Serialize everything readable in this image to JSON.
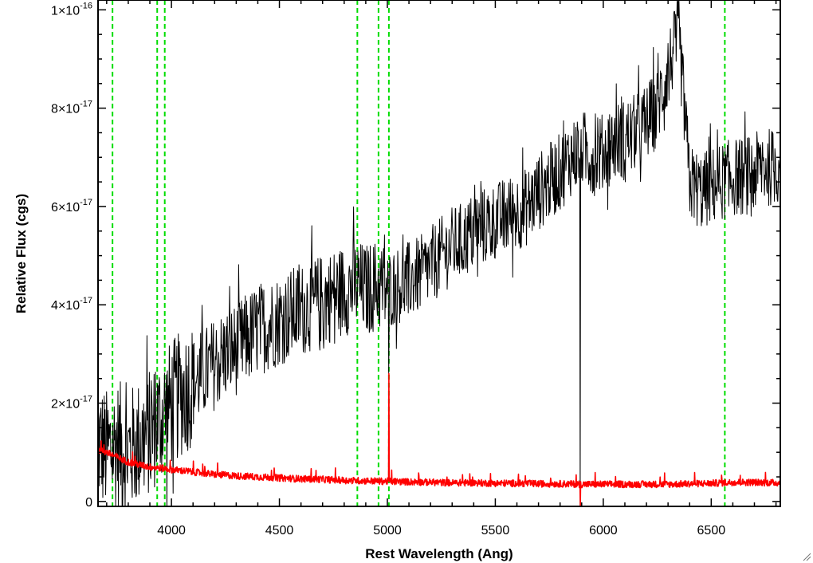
{
  "chart_data": {
    "type": "line",
    "title": "",
    "xlabel": "Rest Wavelength (Ang)",
    "ylabel": "Relative Flux (cgs)",
    "xlim": [
      3660,
      6820
    ],
    "ylim": [
      -1e-18,
      1.02e-16
    ],
    "x_ticks": [
      {
        "value": 4000,
        "label": "4000"
      },
      {
        "value": 4500,
        "label": "4500"
      },
      {
        "value": 5000,
        "label": "5000"
      },
      {
        "value": 5500,
        "label": "5500"
      },
      {
        "value": 6000,
        "label": "6000"
      },
      {
        "value": 6500,
        "label": "6500"
      }
    ],
    "y_ticks": [
      {
        "value": 0,
        "mant": "0",
        "exp": ""
      },
      {
        "value": 2e-17,
        "mant": "2×10",
        "exp": "-17"
      },
      {
        "value": 4e-17,
        "mant": "4×10",
        "exp": "-17"
      },
      {
        "value": 6e-17,
        "mant": "6×10",
        "exp": "-17"
      },
      {
        "value": 8e-17,
        "mant": "8×10",
        "exp": "-17"
      },
      {
        "value": 1e-16,
        "mant": "1×10",
        "exp": "-16"
      }
    ],
    "grid": false,
    "legend": "none",
    "vertical_lines": {
      "color": "#00dd00",
      "style": "dashed",
      "x": [
        3727,
        3934,
        3969,
        4861,
        4959,
        5007,
        6563
      ]
    },
    "series": [
      {
        "color": "#000000",
        "x": [
          3660,
          3700,
          3750,
          3800,
          3850,
          3900,
          3950,
          4000,
          4050,
          4100,
          4150,
          4200,
          4250,
          4300,
          4350,
          4400,
          4450,
          4500,
          4550,
          4600,
          4650,
          4700,
          4750,
          4800,
          4850,
          4900,
          4950,
          5000,
          5050,
          5100,
          5150,
          5200,
          5250,
          5300,
          5350,
          5400,
          5450,
          5500,
          5550,
          5600,
          5650,
          5700,
          5750,
          5800,
          5850,
          5900,
          5950,
          6000,
          6050,
          6100,
          6150,
          6200,
          6250,
          6300,
          6350,
          6400,
          6450,
          6500,
          6550,
          6600,
          6650,
          6700,
          6750,
          6800
        ],
        "y": [
          1.2e-17,
          1e-17,
          1.2e-17,
          1e-17,
          1.2e-17,
          1.4e-17,
          1.7e-17,
          2e-17,
          2.2e-17,
          2.4e-17,
          2.6e-17,
          2.8e-17,
          3e-17,
          3.1e-17,
          3.3e-17,
          3.5e-17,
          3.6e-17,
          3.7e-17,
          3.8e-17,
          3.9e-17,
          4e-17,
          4.1e-17,
          4.2e-17,
          4.3e-17,
          4.4e-17,
          4.3e-17,
          4.4e-17,
          4.3e-17,
          4.4e-17,
          4.5e-17,
          4.6e-17,
          4.8e-17,
          5e-17,
          5.2e-17,
          5.3e-17,
          5.5e-17,
          5.6e-17,
          5.7e-17,
          5.8e-17,
          5.9e-17,
          6e-17,
          6.3e-17,
          6.5e-17,
          6.7e-17,
          7e-17,
          7.2e-17,
          7e-17,
          7.1e-17,
          7.3e-17,
          7.4e-17,
          7.5e-17,
          7.7e-17,
          8e-17,
          8.8e-17,
          9.5e-17,
          6.5e-17,
          6.3e-17,
          6.4e-17,
          6.5e-17,
          6.6e-17,
          6.6e-17,
          6.7e-17,
          6.8e-17,
          6.8e-17
        ]
      },
      {
        "color": "#ff0000",
        "x": [
          3660,
          3700,
          3750,
          3800,
          3850,
          3900,
          3950,
          4000,
          4100,
          4200,
          4300,
          4400,
          4500,
          4600,
          4700,
          4800,
          4900,
          5000,
          5100,
          5200,
          5300,
          5400,
          5500,
          5600,
          5700,
          5800,
          5900,
          6000,
          6100,
          6200,
          6300,
          6400,
          6500,
          6600,
          6700,
          6800
        ],
        "y": [
          1.05e-17,
          1e-17,
          9e-18,
          8e-18,
          7.5e-18,
          7e-18,
          6.8e-18,
          6.5e-18,
          6e-18,
          5.5e-18,
          5.2e-18,
          5e-18,
          4.8e-18,
          4.6e-18,
          4.5e-18,
          4.3e-18,
          4.2e-18,
          4.1e-18,
          4e-18,
          3.9e-18,
          3.8e-18,
          3.8e-18,
          3.7e-18,
          3.7e-18,
          3.6e-18,
          3.6e-18,
          3.5e-18,
          3.5e-18,
          3.5e-18,
          3.5e-18,
          3.5e-18,
          3.6e-18,
          3.7e-18,
          3.9e-18,
          3.9e-18,
          3.8e-18
        ]
      }
    ],
    "features": [
      {
        "series": 0,
        "kind": "absorption",
        "x": 5893,
        "y": -1e-18
      },
      {
        "series": 1,
        "kind": "emission",
        "x": 5007,
        "y": 2.6e-17
      },
      {
        "series": 1,
        "kind": "absorption",
        "x": 5893,
        "y": -1e-18
      },
      {
        "series": 0,
        "kind": "emission",
        "x": 5007,
        "y": 2.6e-17
      }
    ]
  }
}
